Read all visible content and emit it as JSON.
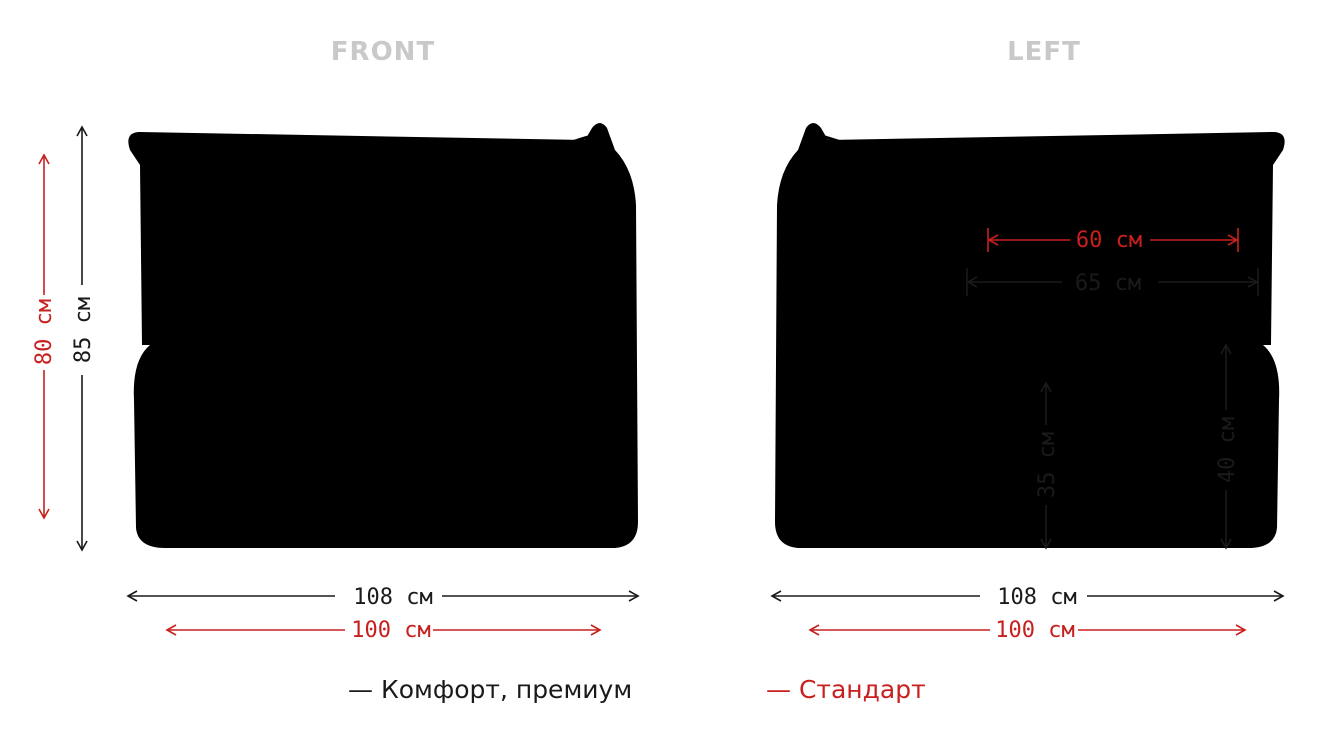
{
  "views": {
    "front_title": "FRONT",
    "left_title": "LEFT"
  },
  "front_dims": {
    "width_comfort": "108 см",
    "width_standard": "100 см",
    "height_comfort": "85 см",
    "height_standard": "80 см"
  },
  "left_dims": {
    "width_comfort": "108 см",
    "width_standard": "100 см",
    "back_standard": "60 см",
    "back_comfort": "65 см",
    "seat_height": "35 см",
    "arm_height": "40 см"
  },
  "legend": {
    "comfort": "— Комфорт, премиум",
    "standard": "— Стандарт"
  },
  "colors": {
    "outline": "#c9c9c9",
    "comfort": "#1a1a1a",
    "standard": "#c8201e"
  }
}
